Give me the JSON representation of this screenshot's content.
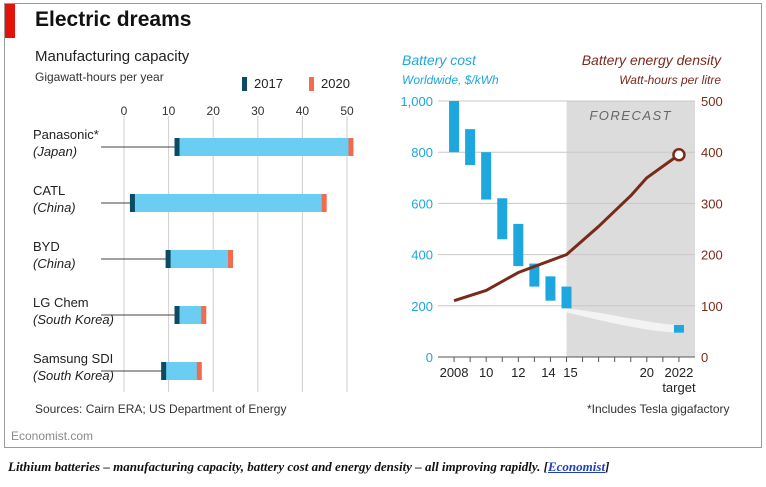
{
  "colors": {
    "accent_red": "#e3120b",
    "bar_2017": "#0d4a63",
    "bar_2020": "#f26b4f",
    "bar_fill": "#6ccdf3",
    "battery_cost": "#1ea6de",
    "energy_density": "#7a2a1b",
    "forecast_bg": "#dcdcdc"
  },
  "header": {
    "title": "Electric dreams",
    "subtitle": "Manufacturing capacity",
    "units": "Gigawatt-hours per year"
  },
  "legend": [
    {
      "label": "2017",
      "color": "#0d4a63"
    },
    {
      "label": "2020",
      "color": "#f26b4f"
    }
  ],
  "right_header": {
    "cost_title": "Battery cost",
    "cost_units": "Worldwide, $/kWh",
    "density_title": "Battery energy density",
    "density_units": "Watt-hours per litre",
    "forecast_label": "FORECAST"
  },
  "footer": {
    "source": "Sources: Cairn ERA; US Department of Energy",
    "note": "*Includes Tesla gigafactory",
    "brand": "Economist.com"
  },
  "caption": {
    "text": "Lithium batteries – manufacturing capacity, battery cost and energy density – all improving rapidly. [",
    "link": "Economist",
    "end": "]"
  },
  "chart_data": [
    {
      "type": "bar",
      "title": "Manufacturing capacity",
      "ylabel": "Gigawatt-hours per year",
      "xlim": [
        0,
        50
      ],
      "ticks": [
        0,
        10,
        20,
        30,
        40,
        50
      ],
      "grid": true,
      "categories": [
        {
          "name": "Panasonic*",
          "country": "(Japan)"
        },
        {
          "name": "CATL",
          "country": "(China)"
        },
        {
          "name": "BYD",
          "country": "(China)"
        },
        {
          "name": "LG Chem",
          "country": "(South Korea)"
        },
        {
          "name": "Samsung SDI",
          "country": "(South Korea)"
        }
      ],
      "series": [
        {
          "name": "2017",
          "values": [
            12,
            2,
            10,
            12,
            9
          ]
        },
        {
          "name": "2020",
          "values": [
            51,
            45,
            24,
            18,
            17
          ]
        }
      ]
    },
    {
      "type": "bar",
      "title": "Battery cost",
      "ylabel": "Worldwide, $/kWh",
      "ylim": [
        0,
        1000
      ],
      "yticks": [
        0,
        200,
        400,
        600,
        800,
        1000
      ],
      "ytick_labels": [
        "0",
        "200",
        "400",
        "600",
        "800",
        "1,000"
      ],
      "xlim": [
        2007,
        2023
      ],
      "xticks": [
        2008,
        2010,
        2012,
        2014,
        2015,
        2020,
        2022
      ],
      "xtick_labels": [
        "2008",
        "10",
        "12",
        "14",
        "15",
        "20",
        "2022"
      ],
      "xtick_sublabel": "target",
      "ranges": [
        {
          "x": 2008,
          "low": 800,
          "high": 1000
        },
        {
          "x": 2009,
          "low": 750,
          "high": 890
        },
        {
          "x": 2010,
          "low": 615,
          "high": 800
        },
        {
          "x": 2011,
          "low": 460,
          "high": 620
        },
        {
          "x": 2012,
          "low": 355,
          "high": 520
        },
        {
          "x": 2013,
          "low": 275,
          "high": 365
        },
        {
          "x": 2014,
          "low": 220,
          "high": 315
        },
        {
          "x": 2015,
          "low": 190,
          "high": 275
        },
        {
          "x": 2022,
          "low": 95,
          "high": 125
        }
      ],
      "forecast_from": 2015.0
    },
    {
      "type": "line",
      "title": "Battery energy density",
      "ylabel": "Watt-hours per litre",
      "ylim": [
        0,
        500
      ],
      "yticks": [
        0,
        100,
        200,
        300,
        400,
        500
      ],
      "x": [
        2008,
        2010,
        2012,
        2015,
        2017,
        2019,
        2020,
        2022
      ],
      "values": [
        110,
        130,
        165,
        200,
        255,
        315,
        350,
        395
      ]
    }
  ]
}
